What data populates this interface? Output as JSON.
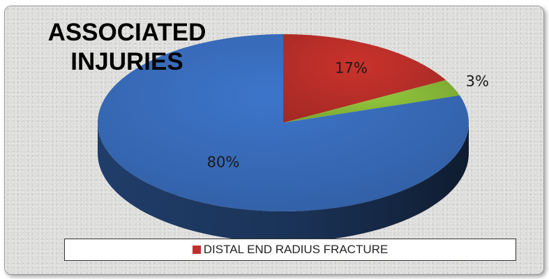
{
  "chart_data": {
    "type": "pie",
    "title_lines": [
      "ASSOCIATED",
      "INJURIES"
    ],
    "slices": [
      {
        "label": "DISTAL END RADIUS FRACTURE",
        "value": 17,
        "data_label": "17%",
        "color": "#c0302a"
      },
      {
        "value": 3,
        "data_label": "3%",
        "color": "#8cbf3a"
      },
      {
        "value": 80,
        "data_label": "80%",
        "color": "#3a6fc0"
      }
    ],
    "legend": {
      "position": "bottom",
      "entries": [
        "DISTAL END RADIUS FRACTURE"
      ]
    },
    "style": "3d"
  }
}
